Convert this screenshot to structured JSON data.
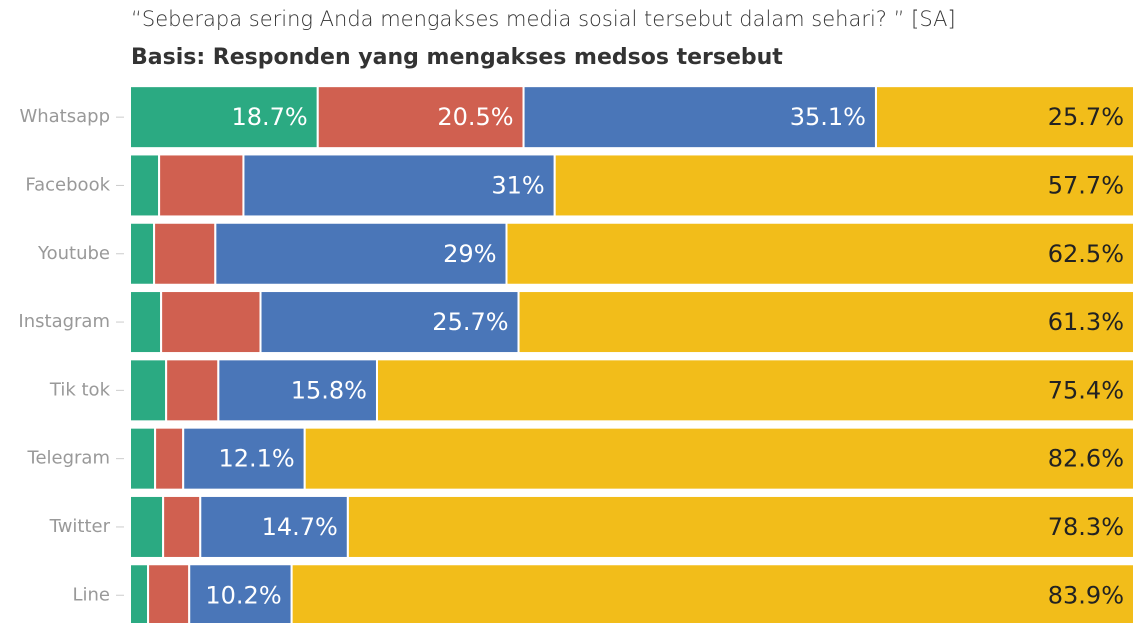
{
  "chart_data": {
    "type": "stacked_bar_horizontal",
    "title": "“Seberapa sering Anda mengakses media sosial tersebut dalam sehari? ” [SA]",
    "subtitle": "Basis: Responden yang mengakses medsos tersebut",
    "categories": [
      "Whatsapp",
      "Facebook",
      "Youtube",
      "Instagram",
      "Tik tok",
      "Telegram",
      "Twitter",
      "Line"
    ],
    "xlim": [
      0,
      100
    ],
    "series": [
      {
        "color": "#2baa82",
        "values": [
          18.7,
          2.9,
          2.4,
          3.1,
          3.6,
          2.5,
          3.3,
          1.8
        ],
        "value_labels": [
          "18.7%",
          null,
          null,
          null,
          null,
          null,
          null,
          null
        ]
      },
      {
        "color": "#d06050",
        "values": [
          20.5,
          8.4,
          6.1,
          9.9,
          5.2,
          2.8,
          3.7,
          4.1
        ],
        "value_labels": [
          "20.5%",
          null,
          null,
          null,
          null,
          null,
          null,
          null
        ]
      },
      {
        "color": "#4a76b8",
        "values": [
          35.1,
          31,
          29,
          25.7,
          15.8,
          12.1,
          14.7,
          10.2
        ],
        "value_labels": [
          "35.1%",
          "31%",
          "29%",
          "25.7%",
          "15.8%",
          "12.1%",
          "14.7%",
          "10.2%"
        ]
      },
      {
        "color": "#f2bd1a",
        "values": [
          25.7,
          57.7,
          62.5,
          61.3,
          75.4,
          82.6,
          78.3,
          83.9
        ],
        "value_labels": [
          "25.7%",
          "57.7%",
          "62.5%",
          "61.3%",
          "75.4%",
          "82.6%",
          "78.3%",
          "83.9%"
        ]
      }
    ]
  }
}
